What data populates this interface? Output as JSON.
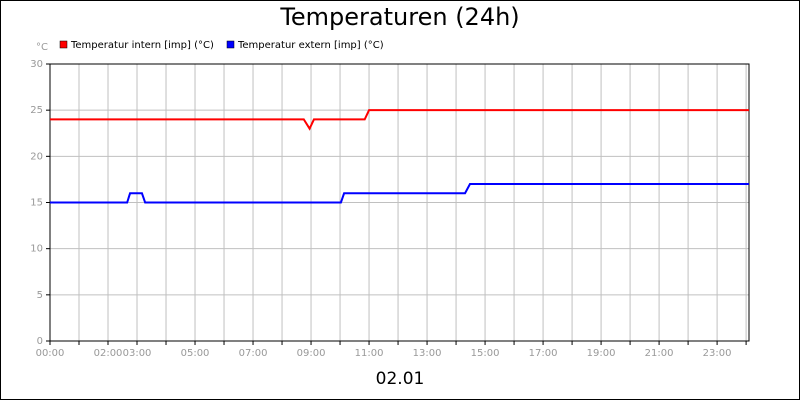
{
  "chart_data": {
    "type": "line",
    "title": "Temperaturen (24h)",
    "y_unit": "°C",
    "xlabel": "02.01",
    "xlim": [
      0,
      24.1
    ],
    "ylim": [
      0,
      30
    ],
    "yticks": [
      0,
      5,
      10,
      15,
      20,
      25,
      30
    ],
    "xticks": [
      {
        "value": 0,
        "label": "00:00"
      },
      {
        "value": 1,
        "label": null
      },
      {
        "value": 2,
        "label": "02:00"
      },
      {
        "value": 3,
        "label": "03:00"
      },
      {
        "value": 4,
        "label": null
      },
      {
        "value": 5,
        "label": "05:00"
      },
      {
        "value": 6,
        "label": null
      },
      {
        "value": 7,
        "label": "07:00"
      },
      {
        "value": 8,
        "label": null
      },
      {
        "value": 9,
        "label": "09:00"
      },
      {
        "value": 10,
        "label": null
      },
      {
        "value": 11,
        "label": "11:00"
      },
      {
        "value": 12,
        "label": null
      },
      {
        "value": 13,
        "label": "13:00"
      },
      {
        "value": 14,
        "label": null
      },
      {
        "value": 15,
        "label": "15:00"
      },
      {
        "value": 16,
        "label": null
      },
      {
        "value": 17,
        "label": "17:00"
      },
      {
        "value": 18,
        "label": null
      },
      {
        "value": 19,
        "label": "19:00"
      },
      {
        "value": 20,
        "label": null
      },
      {
        "value": 21,
        "label": "21:00"
      },
      {
        "value": 22,
        "label": null
      },
      {
        "value": 23,
        "label": "23:00"
      },
      {
        "value": 24,
        "label": null
      }
    ],
    "grid": true,
    "series": [
      {
        "name": "Temperatur intern [imp] (°C)",
        "color": "#ff0000",
        "x": [
          0,
          8.75,
          8.95,
          9.1,
          10.85,
          11.0,
          24.1
        ],
        "values": [
          24,
          24,
          23,
          24,
          24,
          25,
          25
        ]
      },
      {
        "name": "Temperatur extern [imp] (°C)",
        "color": "#0000ff",
        "x": [
          0,
          2.66,
          2.76,
          3.17,
          3.28,
          10.03,
          10.14,
          14.31,
          14.48,
          24.1
        ],
        "values": [
          15,
          15,
          16,
          16,
          15,
          15,
          16,
          16,
          17,
          17
        ]
      }
    ]
  }
}
